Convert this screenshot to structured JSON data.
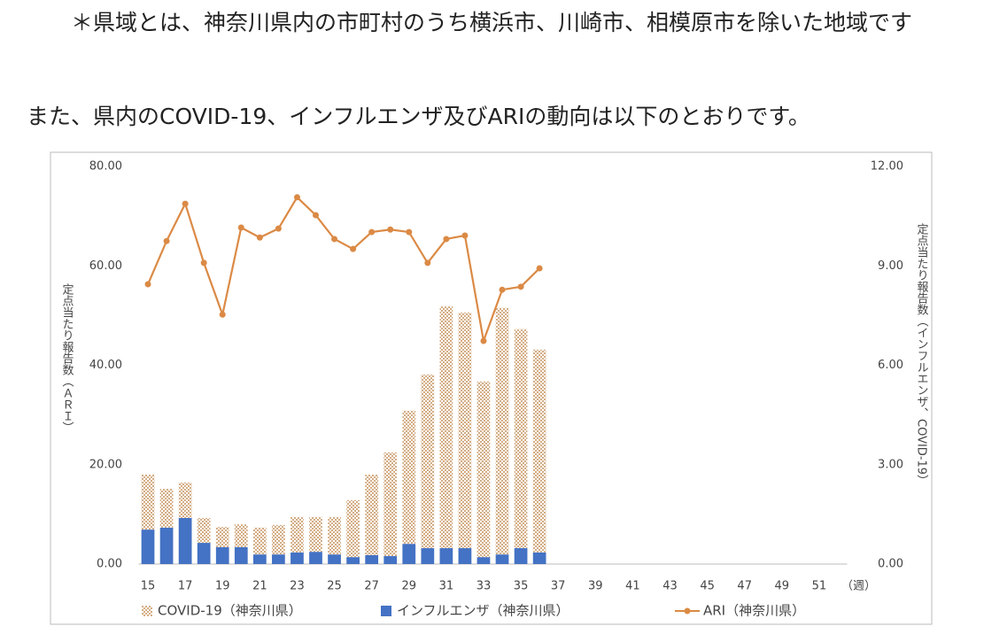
{
  "note_text": "＊県域とは、神奈川県内の市町村のうち横浜市、川崎市、相模原市を除いた地域です",
  "intro_text": "また、県内のCOVID-19、インフルエンザ及びARIの動向は以下のとおりです。",
  "chart_data": {
    "type": "bar-line",
    "categories": [
      "15",
      null,
      "17",
      null,
      "19",
      null,
      "21",
      null,
      "23",
      null,
      "25",
      null,
      "27",
      null,
      "29",
      null,
      "31",
      null,
      "33",
      null,
      "35",
      null,
      "37",
      null,
      "39",
      null,
      "41",
      null,
      "43",
      null,
      "45",
      null,
      "47",
      null,
      "49",
      null,
      "51",
      null
    ],
    "x_unit": "（週）",
    "y_label": "定点当たり報告数（ＡＲＩ）",
    "y2_label": "定点当たり報告数（インフルエンザ、COVID-19）",
    "ylim": [
      0,
      80
    ],
    "yticks": [
      {
        "value": 0,
        "label": "0.00"
      },
      {
        "value": 20,
        "label": "20.00"
      },
      {
        "value": 40,
        "label": "40.00"
      },
      {
        "value": 60,
        "label": "60.00"
      },
      {
        "value": 80,
        "label": "80.00"
      }
    ],
    "y2lim": [
      0,
      12
    ],
    "y2ticks": [
      {
        "value": 0,
        "label": "0.00"
      },
      {
        "value": 3,
        "label": "3.00"
      },
      {
        "value": 6,
        "label": "6.00"
      },
      {
        "value": 9,
        "label": "9.00"
      },
      {
        "value": 12,
        "label": "12.00"
      }
    ],
    "grid": false,
    "legend": "bottom",
    "series": [
      {
        "name": "COVID-19（神奈川県）",
        "type": "bar",
        "axis": "y2",
        "color": "#d4ad85",
        "values": [
          1.66,
          1.17,
          1.07,
          0.75,
          0.61,
          0.69,
          0.81,
          0.89,
          1.07,
          1.05,
          1.13,
          1.72,
          2.43,
          3.13,
          4.02,
          5.24,
          7.3,
          7.11,
          5.3,
          7.44,
          6.61,
          6.12,
          null,
          null,
          null,
          null,
          null,
          null,
          null,
          null,
          null,
          null,
          null,
          null,
          null,
          null,
          null,
          null
        ]
      },
      {
        "name": "インフルエンザ（神奈川県）",
        "type": "bar",
        "axis": "y2",
        "color": "#4472c4",
        "values": [
          1.04,
          1.1,
          1.39,
          0.64,
          0.51,
          0.51,
          0.29,
          0.29,
          0.35,
          0.37,
          0.29,
          0.21,
          0.27,
          0.24,
          0.61,
          0.48,
          0.48,
          0.48,
          0.21,
          0.29,
          0.48,
          0.35,
          null,
          null,
          null,
          null,
          null,
          null,
          null,
          null,
          null,
          null,
          null,
          null,
          null,
          null,
          null,
          null
        ]
      },
      {
        "name": "ARI（神奈川県）",
        "type": "line",
        "color": "#db8a45",
        "values": [
          56.3,
          65.0,
          72.5,
          60.6,
          50.2,
          67.7,
          65.7,
          67.5,
          73.8,
          70.2,
          65.4,
          63.4,
          66.8,
          67.3,
          66.8,
          60.6,
          65.4,
          66.1,
          44.9,
          55.2,
          55.8,
          59.5,
          null,
          null,
          null,
          null,
          null,
          null,
          null,
          null,
          null,
          null,
          null,
          null,
          null,
          null,
          null,
          null
        ]
      }
    ]
  }
}
